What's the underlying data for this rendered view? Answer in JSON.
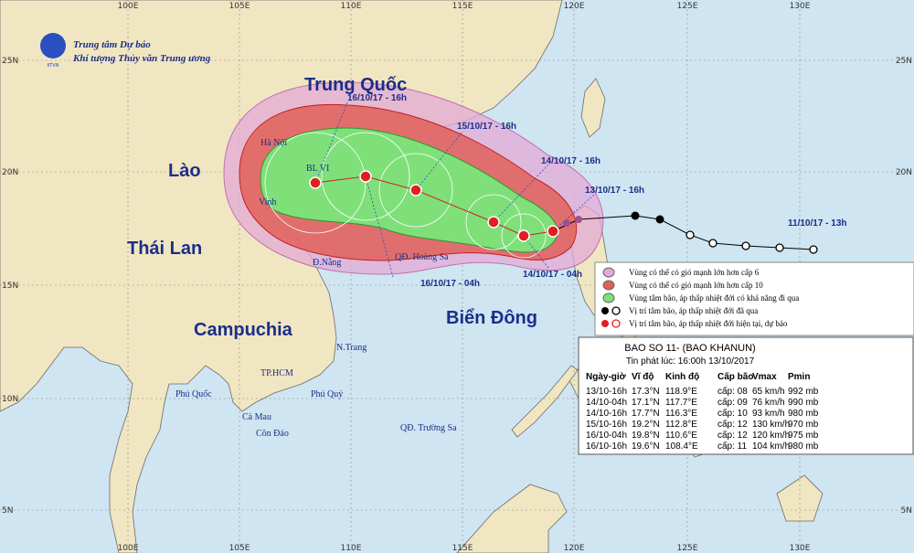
{
  "header": {
    "org_line1": "Trung tâm Dự báo",
    "org_line2": "Khí tượng Thủy văn Trung ương",
    "logo_text": "KTVN"
  },
  "map": {
    "lon_labels": [
      "100E",
      "105E",
      "110E",
      "115E",
      "120E",
      "125E",
      "130E"
    ],
    "lat_labels": [
      "25N",
      "20N",
      "15N",
      "10N",
      "5N"
    ],
    "countries": [
      "Trung Quốc",
      "Lào",
      "Thái Lan",
      "Campuchia",
      "Biển Đông"
    ],
    "places": [
      "Hà Nội",
      "BL VI",
      "Vinh",
      "Đ.Nẵng",
      "QĐ. Hoàng Sa",
      "N.Trang",
      "TP.HCM",
      "Phú Quốc",
      "Phú Quý",
      "Cà Mau",
      "Côn Đảo",
      "QĐ. Trường Sa"
    ],
    "timestamps": [
      "16/10/17 - 16h",
      "15/10/17 - 16h",
      "14/10/17 - 16h",
      "13/10/17 - 16h",
      "11/10/17 - 13h",
      "14/10/17 - 04h",
      "16/10/17 - 04h"
    ]
  },
  "legend": [
    "Vùng có thể có gió mạnh lớn hơn cấp 6",
    "Vùng có thể có gió mạnh lớn hơn cấp 10",
    "Vùng tâm bão, áp thấp nhiệt đới có khả năng đi qua",
    "Vị trí tâm bão, áp thấp nhiệt đới đã qua",
    "Vị trí tâm bão, áp thấp nhiệt đới hiện tại, dự báo"
  ],
  "bulletin": {
    "title": "BAO SO 11- (BAO KHANUN)",
    "issued": "Tin phát lúc: 16:00h 13/10/2017",
    "columns": [
      "Ngày-giờ",
      "Vĩ độ",
      "Kinh độ",
      "Cấp bão",
      "Vmax",
      "Pmin"
    ],
    "rows": [
      [
        "13/10-16h",
        "17.3°N",
        "118.9°E",
        "cấp: 08",
        "65 km/h",
        "992 mb"
      ],
      [
        "14/10-04h",
        "17.1°N",
        "117.7°E",
        "cấp: 09",
        "76 km/h",
        "990 mb"
      ],
      [
        "14/10-16h",
        "17.7°N",
        "116.3°E",
        "cấp: 10",
        "93 km/h",
        "980 mb"
      ],
      [
        "15/10-16h",
        "19.2°N",
        "112.8°E",
        "cấp: 12",
        "130 km/h",
        "970 mb"
      ],
      [
        "16/10-04h",
        "19.8°N",
        "110.6°E",
        "cấp: 12",
        "120 km/h",
        "975 mb"
      ],
      [
        "16/10-16h",
        "19.6°N",
        "108.4°E",
        "cấp: 11",
        "104 km/h",
        "980 mb"
      ]
    ]
  }
}
